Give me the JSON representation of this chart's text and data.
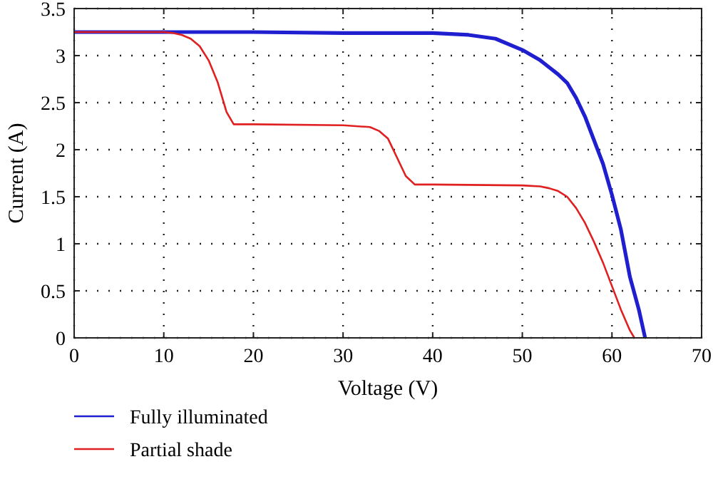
{
  "chart_data": {
    "type": "line",
    "xlabel": "Voltage (V)",
    "ylabel": "Current (A)",
    "xlim": [
      0,
      70
    ],
    "ylim": [
      0,
      3.5
    ],
    "xticks": [
      0,
      10,
      20,
      30,
      40,
      50,
      60,
      70
    ],
    "yticks": [
      0,
      0.5,
      1,
      1.5,
      2,
      2.5,
      3,
      3.5
    ],
    "grid": true,
    "legend": "bottom left",
    "marker": "none",
    "line_style": "solid",
    "series": [
      {
        "name": "Fully illuminated",
        "color": "#1f1fd0",
        "x": [
          0,
          10,
          20,
          30,
          40,
          44,
          47,
          50,
          52,
          54,
          55,
          56,
          57,
          58,
          59,
          60,
          61,
          62,
          63,
          63.7
        ],
        "values": [
          3.25,
          3.25,
          3.25,
          3.24,
          3.24,
          3.22,
          3.18,
          3.06,
          2.95,
          2.8,
          2.71,
          2.55,
          2.35,
          2.1,
          1.85,
          1.52,
          1.15,
          0.65,
          0.3,
          0
        ]
      },
      {
        "name": "Partial shade",
        "color": "#e02020",
        "x": [
          0,
          10,
          11,
          12,
          13,
          14,
          15,
          16,
          17,
          17.8,
          20,
          30,
          33,
          34,
          35,
          36,
          37,
          38,
          40,
          50,
          52,
          53,
          54,
          55,
          56,
          57,
          58,
          59,
          60,
          61,
          62,
          62.5
        ],
        "values": [
          3.25,
          3.25,
          3.24,
          3.22,
          3.18,
          3.1,
          2.95,
          2.72,
          2.4,
          2.27,
          2.27,
          2.26,
          2.24,
          2.2,
          2.12,
          1.92,
          1.72,
          1.63,
          1.63,
          1.62,
          1.61,
          1.59,
          1.56,
          1.5,
          1.38,
          1.22,
          1.02,
          0.8,
          0.55,
          0.3,
          0.08,
          0
        ]
      }
    ]
  }
}
